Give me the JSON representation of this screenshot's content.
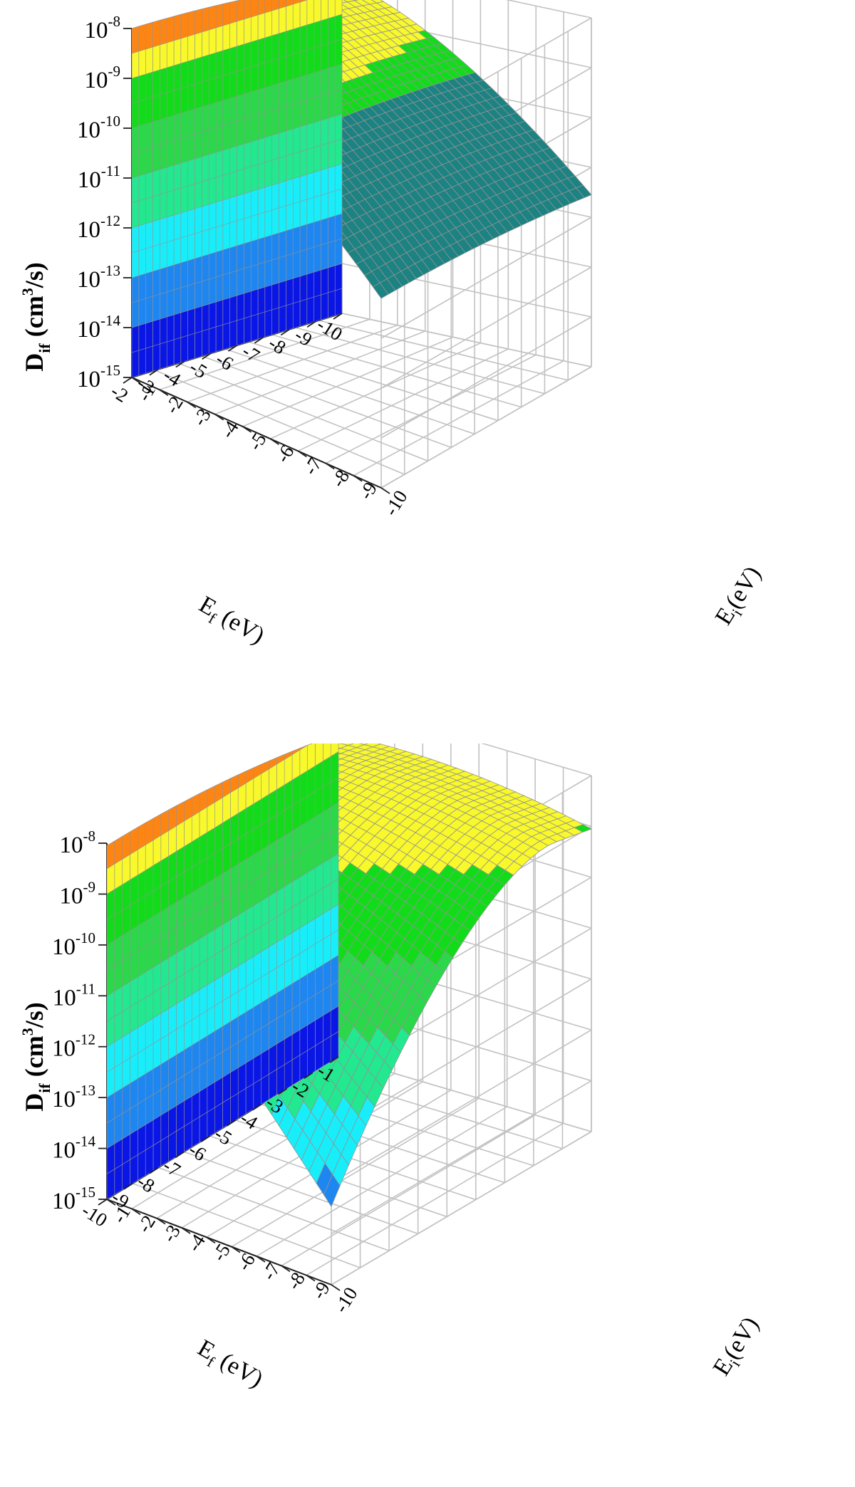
{
  "chart_data": [
    {
      "type": "surface3d",
      "title": "",
      "zlabel": {
        "main": "D",
        "sub": "if",
        "unit_pre": " (cm",
        "unit_sup": "3",
        "unit_post": "/s)"
      },
      "xlabel": {
        "main": "E",
        "sub": "f",
        "unit": " (eV)"
      },
      "ylabel": {
        "main": "E",
        "sub": "i",
        "unit": "(eV)"
      },
      "x_ticks": [
        "-2",
        "-3",
        "-4",
        "-5",
        "-6",
        "-7",
        "-8",
        "-9",
        "-10"
      ],
      "y_ticks": [
        "-1",
        "-2",
        "-3",
        "-4",
        "-5",
        "-6",
        "-7",
        "-8",
        "-9",
        "-10"
      ],
      "z_ticks": [
        {
          "base": "10",
          "exp": "-15"
        },
        {
          "base": "10",
          "exp": "-14"
        },
        {
          "base": "10",
          "exp": "-13"
        },
        {
          "base": "10",
          "exp": "-12"
        },
        {
          "base": "10",
          "exp": "-11"
        },
        {
          "base": "10",
          "exp": "-10"
        },
        {
          "base": "10",
          "exp": "-9"
        },
        {
          "base": "10",
          "exp": "-8"
        }
      ],
      "x_range": [
        -1,
        -10
      ],
      "y_range": [
        -1,
        -10
      ],
      "z_range_log10": [
        -15,
        -8
      ],
      "z_scale": "log",
      "grid": true,
      "colormap_bands": [
        {
          "from_log10": -15,
          "to_log10": -14,
          "color": "#0a16e6"
        },
        {
          "from_log10": -14,
          "to_log10": -13,
          "color": "#1e86f0"
        },
        {
          "from_log10": -13,
          "to_log10": -12,
          "color": "#18eefa"
        },
        {
          "from_log10": -12,
          "to_log10": -11,
          "color": "#22e890"
        },
        {
          "from_log10": -11,
          "to_log10": -10,
          "color": "#2ad84a"
        },
        {
          "from_log10": -10,
          "to_log10": -9,
          "color": "#12dc1a"
        },
        {
          "from_log10": -9,
          "to_log10": -8.3,
          "color": "#f8f82a"
        },
        {
          "from_log10": -8.3,
          "to_log10": -8,
          "color": "#ff8512"
        }
      ],
      "peak_log10": -8,
      "back_surface_color": "#1c8282"
    },
    {
      "type": "surface3d",
      "title": "",
      "zlabel": {
        "main": "D",
        "sub": "if",
        "unit_pre": " (cm",
        "unit_sup": "3",
        "unit_post": "/s)"
      },
      "xlabel": {
        "main": "E",
        "sub": "f",
        "unit": " (eV)"
      },
      "ylabel": {
        "main": "E",
        "sub": "i",
        "unit": "(eV)"
      },
      "x_ticks": [
        "-10",
        "-9",
        "-8",
        "-7",
        "-6",
        "-5",
        "-4",
        "-3",
        "-2",
        "-1"
      ],
      "y_ticks": [
        "-1",
        "-2",
        "-3",
        "-4",
        "-5",
        "-6",
        "-7",
        "-8",
        "-9",
        "-10"
      ],
      "z_ticks": [
        {
          "base": "10",
          "exp": "-15"
        },
        {
          "base": "10",
          "exp": "-14"
        },
        {
          "base": "10",
          "exp": "-13"
        },
        {
          "base": "10",
          "exp": "-12"
        },
        {
          "base": "10",
          "exp": "-11"
        },
        {
          "base": "10",
          "exp": "-10"
        },
        {
          "base": "10",
          "exp": "-9"
        },
        {
          "base": "10",
          "exp": "-8"
        }
      ],
      "x_range": [
        -10,
        -1
      ],
      "y_range": [
        -1,
        -10
      ],
      "z_range_log10": [
        -15,
        -8
      ],
      "z_scale": "log",
      "grid": true,
      "colormap_bands": [
        {
          "from_log10": -15,
          "to_log10": -14,
          "color": "#0a16e6"
        },
        {
          "from_log10": -14,
          "to_log10": -13,
          "color": "#1e86f0"
        },
        {
          "from_log10": -13,
          "to_log10": -12,
          "color": "#18eefa"
        },
        {
          "from_log10": -12,
          "to_log10": -11,
          "color": "#22e890"
        },
        {
          "from_log10": -11,
          "to_log10": -10,
          "color": "#2ad84a"
        },
        {
          "from_log10": -10,
          "to_log10": -9,
          "color": "#12dc1a"
        },
        {
          "from_log10": -9,
          "to_log10": -8.3,
          "color": "#f8f82a"
        },
        {
          "from_log10": -8.3,
          "to_log10": -8,
          "color": "#ff8512"
        }
      ],
      "peak_log10": -8
    }
  ]
}
